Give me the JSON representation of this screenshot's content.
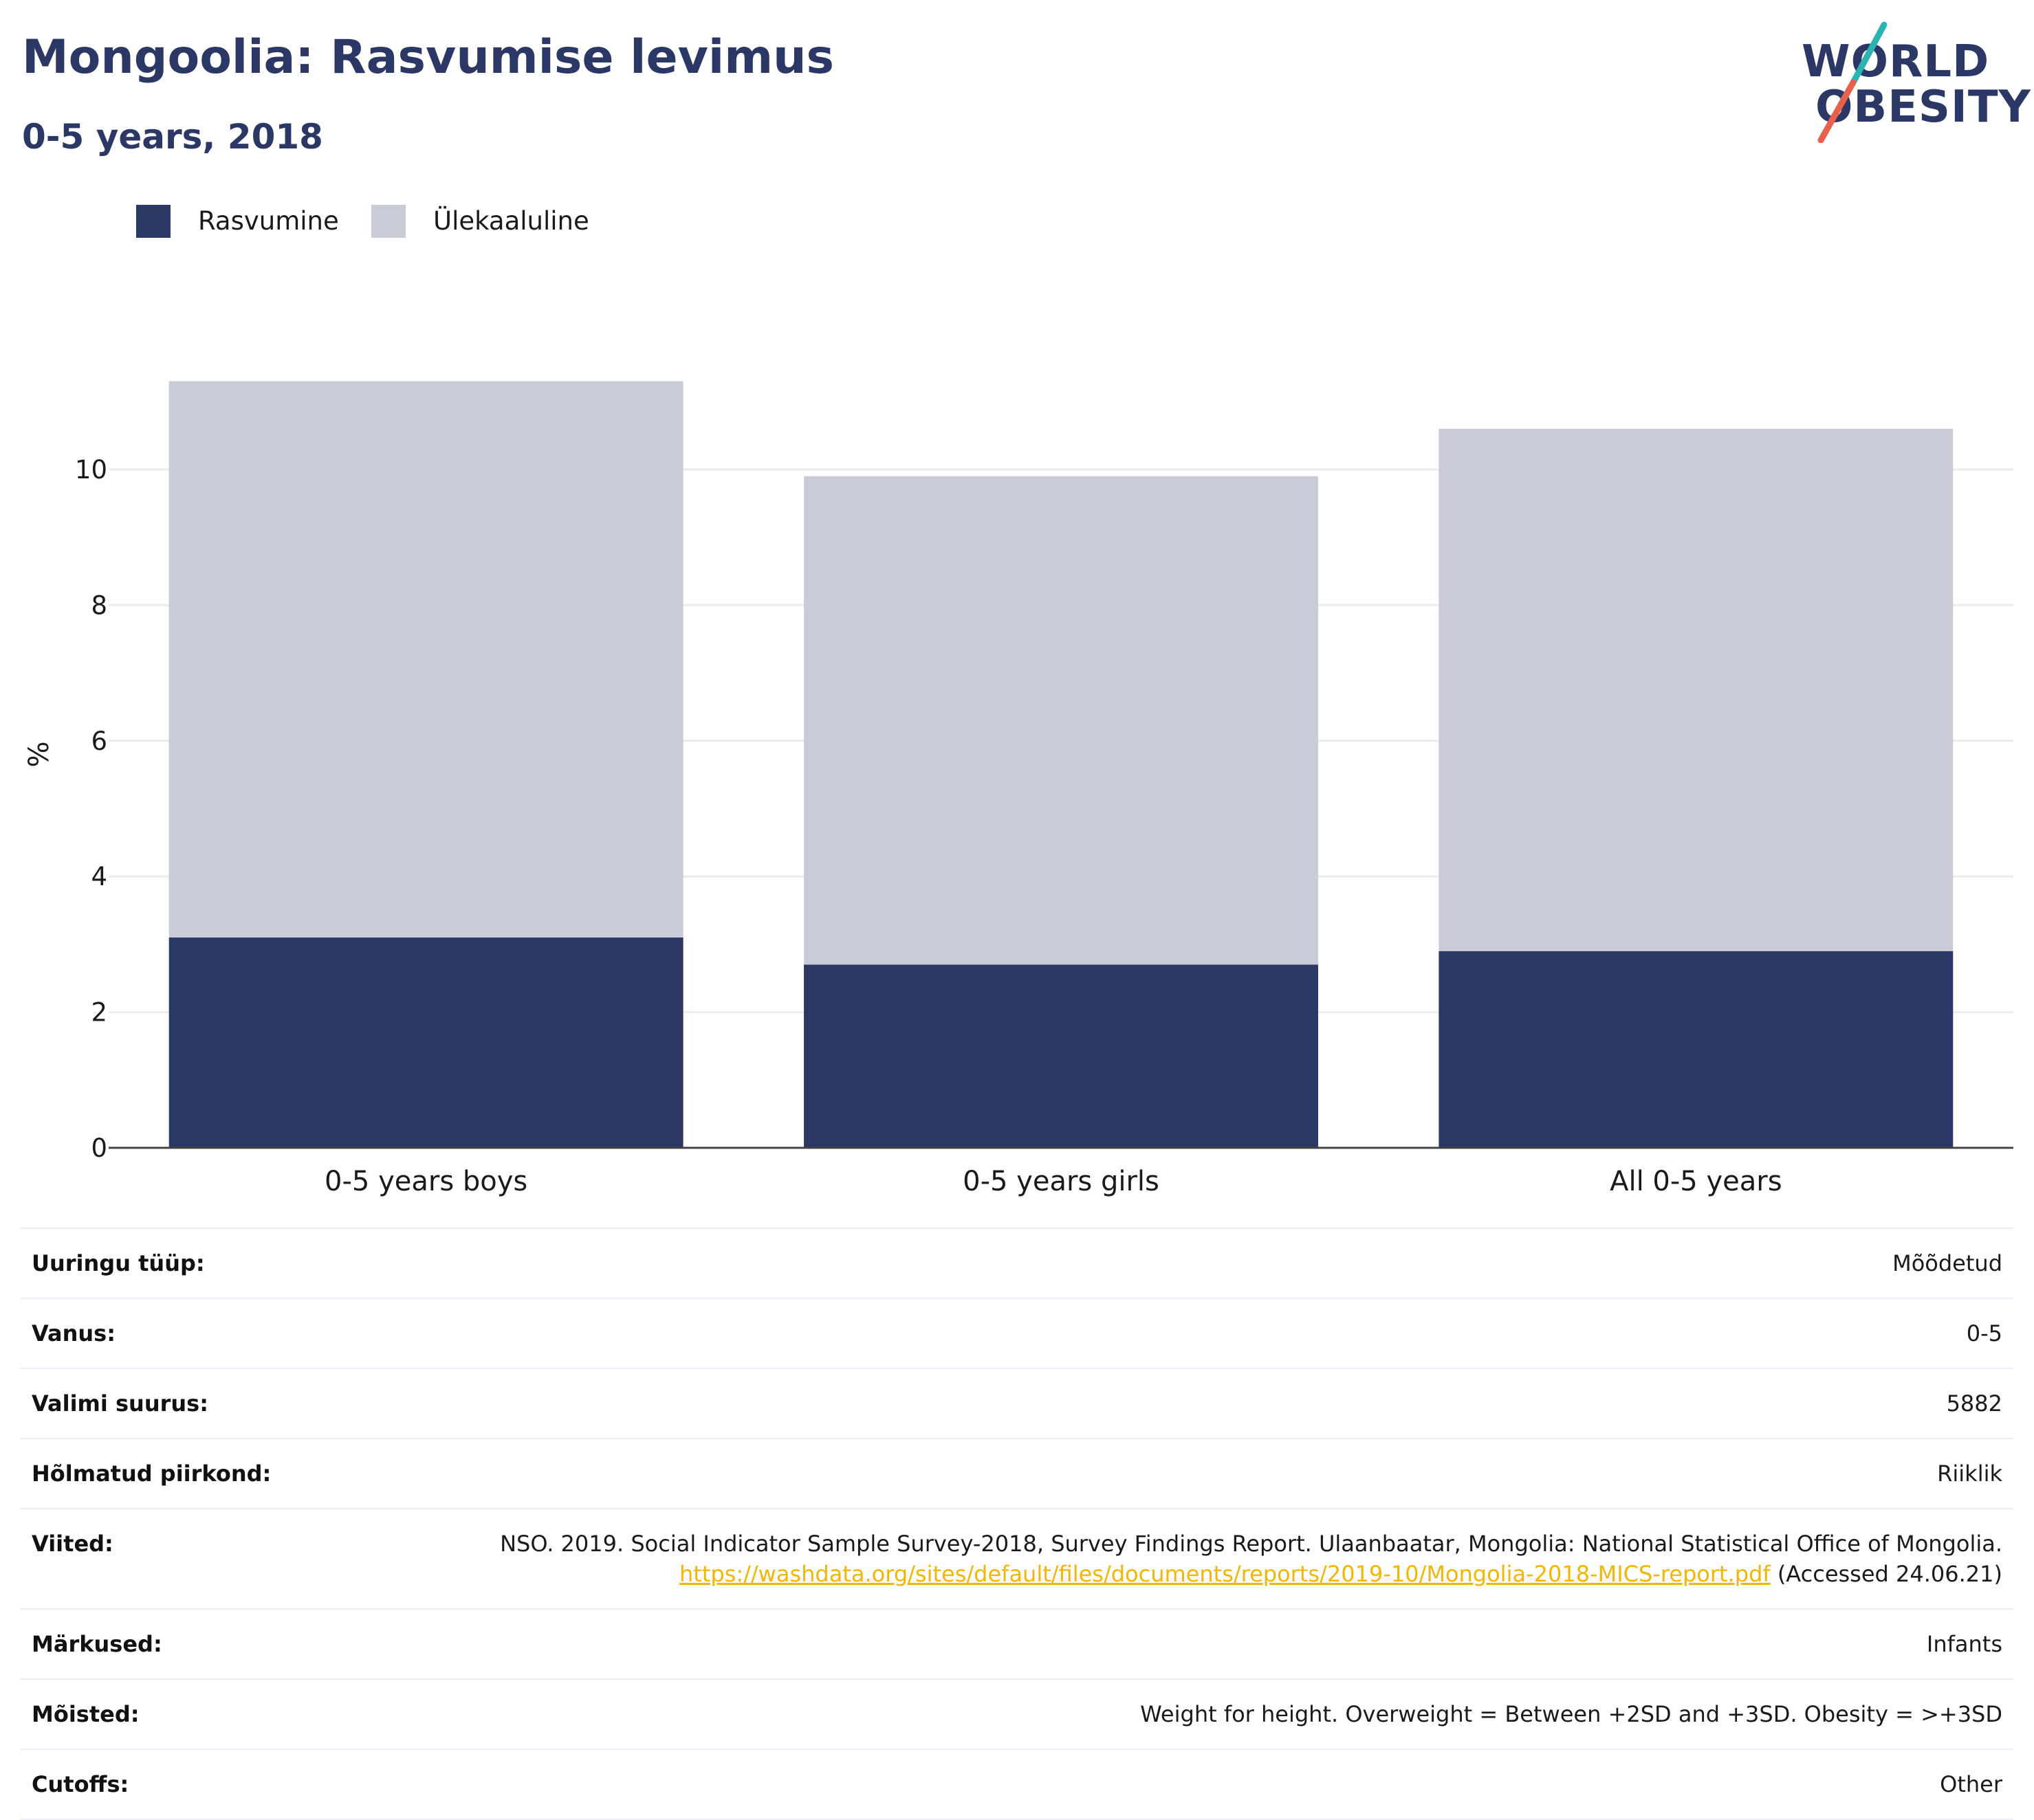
{
  "header": {
    "title": "Mongoolia: Rasvumise levimus",
    "subtitle": "0-5 years, 2018"
  },
  "logo": {
    "line1": "WORLD",
    "line2": "OBESITY",
    "colors": {
      "text": "#2b3765",
      "slash_top": "#2ab3b1",
      "slash_bottom": "#e8604c"
    }
  },
  "legend": {
    "items": [
      {
        "label": "Rasvumine",
        "color": "#2b3765"
      },
      {
        "label": "Ülekaaluline",
        "color": "#c9cbd7"
      }
    ]
  },
  "chart_data": {
    "type": "bar",
    "stacked": true,
    "categories": [
      "0-5 years boys",
      "0-5 years girls",
      "All 0-5 years"
    ],
    "series": [
      {
        "name": "Rasvumine",
        "values": [
          3.1,
          2.7,
          2.9
        ],
        "color": "#2b3765"
      },
      {
        "name": "Ülekaaluline",
        "values": [
          8.2,
          7.2,
          7.7
        ],
        "color": "#c9cbd7"
      }
    ],
    "ylabel": "%",
    "ylim": [
      0,
      11.5
    ],
    "yticks": [
      0,
      2,
      4,
      6,
      8,
      10
    ],
    "grid": true,
    "legend_position": "top-left"
  },
  "details": {
    "rows": [
      {
        "label": "Uuringu tüüp:",
        "value": "Mõõdetud"
      },
      {
        "label": "Vanus:",
        "value": "0-5"
      },
      {
        "label": "Valimi suurus:",
        "value": "5882"
      },
      {
        "label": "Hõlmatud piirkond:",
        "value": "Riiklik"
      },
      {
        "label": "Viited:",
        "value_prefix": "NSO. 2019. Social Indicator Sample Survey-2018, Survey Findings Report. Ulaanbaatar, Mongolia: National Statistical Office of Mongolia. ",
        "link": "https://washdata.org/sites/default/files/documents/reports/2019-10/Mongolia-2018-MICS-report.pdf",
        "value_suffix": " (Accessed 24.06.21)"
      },
      {
        "label": "Märkused:",
        "value": "Infants"
      },
      {
        "label": "Mõisted:",
        "value": "Weight for height. Overweight = Between +2SD and +3SD. Obesity = >+3SD"
      },
      {
        "label": "Cutoffs:",
        "value": "Other"
      }
    ]
  }
}
